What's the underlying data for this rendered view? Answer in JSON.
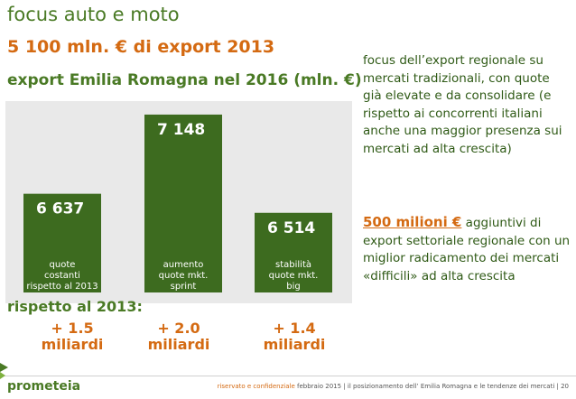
{
  "header": {
    "title": "focus auto e moto",
    "subtitle": "5 100 mln. € di export 2013"
  },
  "chart_data": {
    "type": "bar",
    "title": "export Emilia Romagna nel 2016 (mln. €)",
    "categories": [
      "quote costanti rispetto al 2013",
      "aumento quote mkt. sprint",
      "stabilità quote mkt. big"
    ],
    "category_lines": [
      [
        "quote",
        "costanti",
        "rispetto al 2013"
      ],
      [
        "aumento",
        "quote mkt.",
        "sprint"
      ],
      [
        "stabilità",
        "quote mkt.",
        "big"
      ]
    ],
    "values": [
      6637,
      7148,
      6514
    ],
    "value_labels": [
      "6 637",
      "7 148",
      "6 514"
    ],
    "ylim": [
      6000,
      7200
    ],
    "colors": {
      "bar": "#3d6b1f",
      "panel": "#e9e9e9",
      "accent": "#d46a12"
    }
  },
  "comparison": {
    "label": "rispetto al 2013:",
    "deltas": [
      {
        "value": "+ 1.5",
        "unit": "miliardi"
      },
      {
        "value": "+ 2.0",
        "unit": "miliardi"
      },
      {
        "value": "+ 1.4",
        "unit": "miliardi"
      }
    ]
  },
  "sidebar": {
    "paragraph1": "focus dell’export regionale su mercati tradizionali, con quote già elevate e da consolidare (e rispetto ai concorrenti italiani anche una maggior presenza sui mercati ad alta crescita)",
    "highlight": "500 milioni €",
    "paragraph2": " aggiuntivi di export settoriale regionale con un miglior radicamento dei mercati «difficili» ad alta crescita"
  },
  "footer": {
    "logo": "prometeia",
    "confidential": "riservato e confidenziale",
    "text": "febbraio 2015 | il posizionamento dell’ Emilia Romagna e le tendenze dei mercati | 20"
  }
}
